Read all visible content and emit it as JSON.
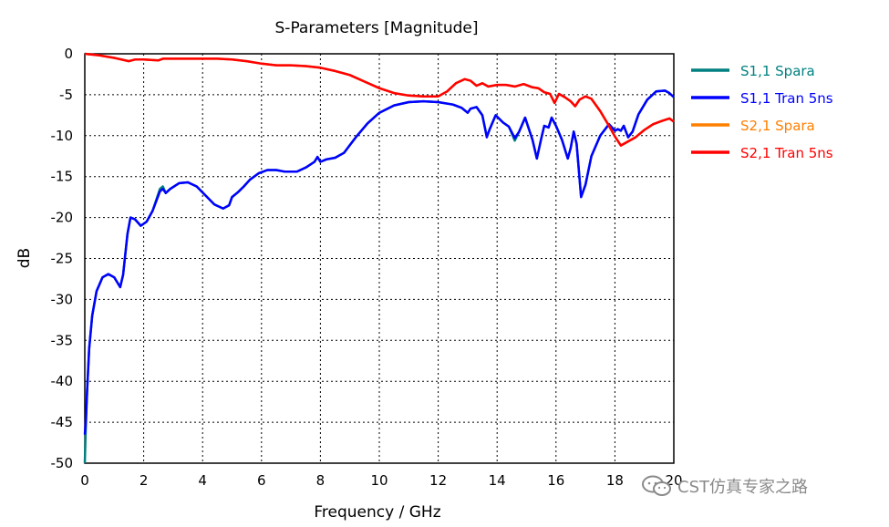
{
  "chart_data": {
    "type": "line",
    "title": "S-Parameters [Magnitude]",
    "xlabel": "Frequency / GHz",
    "ylabel": "dB",
    "xlim": [
      0,
      20
    ],
    "ylim": [
      -50,
      0
    ],
    "x_ticks": [
      "0",
      "2",
      "4",
      "6",
      "8",
      "10",
      "12",
      "14",
      "16",
      "18",
      "20"
    ],
    "y_ticks": [
      "0",
      "-5",
      "-10",
      "-15",
      "-20",
      "-25",
      "-30",
      "-35",
      "-40",
      "-45",
      "-50"
    ],
    "grid": true,
    "legend_position": "right",
    "series": [
      {
        "name": "S1,1 Spara",
        "color": "#008080",
        "points": [
          [
            0,
            -50
          ],
          [
            0.03,
            -46
          ],
          [
            0.08,
            -41
          ],
          [
            0.15,
            -36
          ],
          [
            0.25,
            -32
          ],
          [
            0.4,
            -29
          ],
          [
            0.6,
            -27.3
          ],
          [
            0.8,
            -26.9
          ],
          [
            1.0,
            -27.3
          ],
          [
            1.2,
            -28.5
          ],
          [
            1.3,
            -27
          ],
          [
            1.45,
            -22
          ],
          [
            1.55,
            -20
          ],
          [
            1.7,
            -20.2
          ],
          [
            1.9,
            -21
          ],
          [
            2.1,
            -20.5
          ],
          [
            2.3,
            -19.2
          ],
          [
            2.55,
            -16.5
          ],
          [
            2.65,
            -16.2
          ],
          [
            2.75,
            -17
          ],
          [
            2.9,
            -16.5
          ],
          [
            3.2,
            -15.8
          ],
          [
            3.5,
            -15.7
          ],
          [
            3.8,
            -16.2
          ],
          [
            4.1,
            -17.3
          ],
          [
            4.4,
            -18.4
          ],
          [
            4.7,
            -18.9
          ],
          [
            4.9,
            -18.5
          ],
          [
            5.0,
            -17.5
          ],
          [
            5.2,
            -16.9
          ],
          [
            5.4,
            -16.2
          ],
          [
            5.6,
            -15.4
          ],
          [
            5.9,
            -14.6
          ],
          [
            6.2,
            -14.2
          ],
          [
            6.5,
            -14.2
          ],
          [
            6.8,
            -14.4
          ],
          [
            7.2,
            -14.4
          ],
          [
            7.5,
            -13.9
          ],
          [
            7.8,
            -13.2
          ],
          [
            7.9,
            -12.6
          ],
          [
            8.0,
            -13.2
          ],
          [
            8.2,
            -12.9
          ],
          [
            8.5,
            -12.7
          ],
          [
            8.8,
            -12.1
          ],
          [
            9.2,
            -10.2
          ],
          [
            9.6,
            -8.5
          ],
          [
            10.0,
            -7.2
          ],
          [
            10.5,
            -6.3
          ],
          [
            11.0,
            -5.9
          ],
          [
            11.5,
            -5.8
          ],
          [
            12.0,
            -5.9
          ],
          [
            12.5,
            -6.2
          ],
          [
            12.8,
            -6.6
          ],
          [
            13.0,
            -7.2
          ],
          [
            13.1,
            -6.7
          ],
          [
            13.3,
            -6.5
          ],
          [
            13.5,
            -7.5
          ],
          [
            13.65,
            -10.1
          ],
          [
            13.75,
            -9.2
          ],
          [
            13.95,
            -7.5
          ],
          [
            14.2,
            -8.4
          ],
          [
            14.4,
            -8.9
          ],
          [
            14.6,
            -10.6
          ],
          [
            14.75,
            -9.5
          ],
          [
            14.95,
            -7.8
          ],
          [
            15.2,
            -10.5
          ],
          [
            15.35,
            -12.8
          ],
          [
            15.5,
            -10.3
          ],
          [
            15.6,
            -8.8
          ],
          [
            15.75,
            -9
          ],
          [
            15.85,
            -7.8
          ],
          [
            16.0,
            -8.8
          ],
          [
            16.2,
            -10.5
          ],
          [
            16.4,
            -12.8
          ],
          [
            16.5,
            -11.5
          ],
          [
            16.6,
            -9.5
          ],
          [
            16.7,
            -11
          ],
          [
            16.85,
            -17.5
          ],
          [
            17.0,
            -16
          ],
          [
            17.2,
            -12.5
          ],
          [
            17.5,
            -10
          ],
          [
            17.8,
            -8.6
          ],
          [
            18.0,
            -9.4
          ],
          [
            18.1,
            -9.2
          ],
          [
            18.2,
            -9.4
          ],
          [
            18.3,
            -8.8
          ],
          [
            18.45,
            -10.2
          ],
          [
            18.6,
            -9.5
          ],
          [
            18.8,
            -7.4
          ],
          [
            19.1,
            -5.6
          ],
          [
            19.4,
            -4.6
          ],
          [
            19.7,
            -4.5
          ],
          [
            19.85,
            -4.8
          ],
          [
            20.0,
            -5.3
          ]
        ]
      },
      {
        "name": "S1,1 Tran 5ns",
        "color": "#0000ff",
        "points": [
          [
            0,
            -46.5
          ],
          [
            0.03,
            -45
          ],
          [
            0.08,
            -41
          ],
          [
            0.15,
            -36
          ],
          [
            0.25,
            -32
          ],
          [
            0.4,
            -29
          ],
          [
            0.6,
            -27.3
          ],
          [
            0.8,
            -26.9
          ],
          [
            1.0,
            -27.3
          ],
          [
            1.2,
            -28.5
          ],
          [
            1.3,
            -27
          ],
          [
            1.45,
            -22
          ],
          [
            1.55,
            -20
          ],
          [
            1.7,
            -20.2
          ],
          [
            1.9,
            -21
          ],
          [
            2.1,
            -20.5
          ],
          [
            2.3,
            -19.2
          ],
          [
            2.55,
            -16.8
          ],
          [
            2.65,
            -16.5
          ],
          [
            2.75,
            -17
          ],
          [
            2.9,
            -16.5
          ],
          [
            3.2,
            -15.8
          ],
          [
            3.5,
            -15.7
          ],
          [
            3.8,
            -16.2
          ],
          [
            4.1,
            -17.3
          ],
          [
            4.4,
            -18.4
          ],
          [
            4.7,
            -18.9
          ],
          [
            4.9,
            -18.5
          ],
          [
            5.0,
            -17.5
          ],
          [
            5.2,
            -16.9
          ],
          [
            5.4,
            -16.2
          ],
          [
            5.6,
            -15.4
          ],
          [
            5.9,
            -14.6
          ],
          [
            6.2,
            -14.2
          ],
          [
            6.5,
            -14.2
          ],
          [
            6.8,
            -14.4
          ],
          [
            7.2,
            -14.4
          ],
          [
            7.5,
            -13.9
          ],
          [
            7.8,
            -13.2
          ],
          [
            7.9,
            -12.6
          ],
          [
            8.0,
            -13.2
          ],
          [
            8.2,
            -12.9
          ],
          [
            8.5,
            -12.7
          ],
          [
            8.8,
            -12.1
          ],
          [
            9.2,
            -10.2
          ],
          [
            9.6,
            -8.5
          ],
          [
            10.0,
            -7.2
          ],
          [
            10.5,
            -6.3
          ],
          [
            11.0,
            -5.9
          ],
          [
            11.5,
            -5.8
          ],
          [
            12.0,
            -5.9
          ],
          [
            12.5,
            -6.2
          ],
          [
            12.8,
            -6.6
          ],
          [
            13.0,
            -7.2
          ],
          [
            13.1,
            -6.7
          ],
          [
            13.3,
            -6.5
          ],
          [
            13.5,
            -7.5
          ],
          [
            13.65,
            -10.2
          ],
          [
            13.75,
            -9.2
          ],
          [
            13.95,
            -7.5
          ],
          [
            14.2,
            -8.4
          ],
          [
            14.4,
            -8.9
          ],
          [
            14.6,
            -10.3
          ],
          [
            14.75,
            -9.5
          ],
          [
            14.95,
            -7.8
          ],
          [
            15.2,
            -10.5
          ],
          [
            15.35,
            -12.8
          ],
          [
            15.5,
            -10.3
          ],
          [
            15.6,
            -8.8
          ],
          [
            15.75,
            -9
          ],
          [
            15.85,
            -7.8
          ],
          [
            16.0,
            -8.8
          ],
          [
            16.2,
            -10.5
          ],
          [
            16.4,
            -12.8
          ],
          [
            16.5,
            -11.5
          ],
          [
            16.6,
            -9.5
          ],
          [
            16.7,
            -11
          ],
          [
            16.85,
            -17.5
          ],
          [
            17.0,
            -16
          ],
          [
            17.2,
            -12.5
          ],
          [
            17.5,
            -10
          ],
          [
            17.8,
            -8.6
          ],
          [
            18.0,
            -9.4
          ],
          [
            18.1,
            -9.2
          ],
          [
            18.2,
            -9.4
          ],
          [
            18.3,
            -8.8
          ],
          [
            18.45,
            -10.2
          ],
          [
            18.6,
            -9.5
          ],
          [
            18.8,
            -7.4
          ],
          [
            19.1,
            -5.6
          ],
          [
            19.4,
            -4.6
          ],
          [
            19.7,
            -4.5
          ],
          [
            19.85,
            -4.8
          ],
          [
            20.0,
            -5.3
          ]
        ]
      },
      {
        "name": "S2,1 Spara",
        "color": "#ff8000",
        "points": [
          [
            0,
            0
          ],
          [
            0.5,
            -0.2
          ],
          [
            1.0,
            -0.5
          ],
          [
            1.5,
            -0.9
          ],
          [
            1.7,
            -0.7
          ],
          [
            2.0,
            -0.7
          ],
          [
            2.5,
            -0.8
          ],
          [
            2.65,
            -0.6
          ],
          [
            3.0,
            -0.6
          ],
          [
            3.5,
            -0.6
          ],
          [
            4.0,
            -0.6
          ],
          [
            4.5,
            -0.6
          ],
          [
            5.0,
            -0.7
          ],
          [
            5.5,
            -0.9
          ],
          [
            6.0,
            -1.2
          ],
          [
            6.5,
            -1.4
          ],
          [
            7.0,
            -1.4
          ],
          [
            7.5,
            -1.5
          ],
          [
            8.0,
            -1.7
          ],
          [
            8.5,
            -2.1
          ],
          [
            9.0,
            -2.6
          ],
          [
            9.5,
            -3.4
          ],
          [
            10.0,
            -4.2
          ],
          [
            10.5,
            -4.8
          ],
          [
            11.0,
            -5.1
          ],
          [
            11.5,
            -5.2
          ],
          [
            12.0,
            -5.2
          ],
          [
            12.3,
            -4.6
          ],
          [
            12.6,
            -3.6
          ],
          [
            12.9,
            -3.1
          ],
          [
            13.1,
            -3.3
          ],
          [
            13.3,
            -3.9
          ],
          [
            13.5,
            -3.6
          ],
          [
            13.7,
            -4.0
          ],
          [
            14.0,
            -3.8
          ],
          [
            14.3,
            -3.8
          ],
          [
            14.6,
            -4.0
          ],
          [
            14.9,
            -3.7
          ],
          [
            15.2,
            -4.1
          ],
          [
            15.4,
            -4.2
          ],
          [
            15.6,
            -4.7
          ],
          [
            15.8,
            -4.9
          ],
          [
            15.95,
            -6.0
          ],
          [
            16.1,
            -4.9
          ],
          [
            16.3,
            -5.3
          ],
          [
            16.5,
            -5.8
          ],
          [
            16.65,
            -6.4
          ],
          [
            16.8,
            -5.6
          ],
          [
            17.0,
            -5.2
          ],
          [
            17.2,
            -5.5
          ],
          [
            17.5,
            -7.0
          ],
          [
            17.8,
            -8.8
          ],
          [
            18.0,
            -10.1
          ],
          [
            18.2,
            -11.2
          ],
          [
            18.4,
            -10.8
          ],
          [
            18.7,
            -10.2
          ],
          [
            19.0,
            -9.3
          ],
          [
            19.3,
            -8.6
          ],
          [
            19.6,
            -8.2
          ],
          [
            19.85,
            -7.9
          ],
          [
            20.0,
            -8.3
          ]
        ]
      },
      {
        "name": "S2,1 Tran 5ns",
        "color": "#ff0000",
        "points": [
          [
            0,
            0
          ],
          [
            0.5,
            -0.2
          ],
          [
            1.0,
            -0.5
          ],
          [
            1.5,
            -0.9
          ],
          [
            1.7,
            -0.7
          ],
          [
            2.0,
            -0.7
          ],
          [
            2.5,
            -0.8
          ],
          [
            2.65,
            -0.6
          ],
          [
            3.0,
            -0.6
          ],
          [
            3.5,
            -0.6
          ],
          [
            4.0,
            -0.6
          ],
          [
            4.5,
            -0.6
          ],
          [
            5.0,
            -0.7
          ],
          [
            5.5,
            -0.9
          ],
          [
            6.0,
            -1.2
          ],
          [
            6.5,
            -1.4
          ],
          [
            7.0,
            -1.4
          ],
          [
            7.5,
            -1.5
          ],
          [
            8.0,
            -1.7
          ],
          [
            8.5,
            -2.1
          ],
          [
            9.0,
            -2.6
          ],
          [
            9.5,
            -3.4
          ],
          [
            10.0,
            -4.2
          ],
          [
            10.5,
            -4.8
          ],
          [
            11.0,
            -5.1
          ],
          [
            11.5,
            -5.2
          ],
          [
            12.0,
            -5.2
          ],
          [
            12.3,
            -4.6
          ],
          [
            12.6,
            -3.6
          ],
          [
            12.9,
            -3.1
          ],
          [
            13.1,
            -3.3
          ],
          [
            13.3,
            -3.9
          ],
          [
            13.5,
            -3.6
          ],
          [
            13.7,
            -4.0
          ],
          [
            14.0,
            -3.8
          ],
          [
            14.3,
            -3.8
          ],
          [
            14.6,
            -4.0
          ],
          [
            14.9,
            -3.7
          ],
          [
            15.2,
            -4.1
          ],
          [
            15.4,
            -4.2
          ],
          [
            15.6,
            -4.7
          ],
          [
            15.8,
            -4.9
          ],
          [
            15.95,
            -6.0
          ],
          [
            16.1,
            -4.9
          ],
          [
            16.3,
            -5.3
          ],
          [
            16.5,
            -5.8
          ],
          [
            16.65,
            -6.4
          ],
          [
            16.8,
            -5.6
          ],
          [
            17.0,
            -5.2
          ],
          [
            17.2,
            -5.5
          ],
          [
            17.5,
            -7.0
          ],
          [
            17.8,
            -8.8
          ],
          [
            18.0,
            -10.1
          ],
          [
            18.2,
            -11.2
          ],
          [
            18.4,
            -10.8
          ],
          [
            18.7,
            -10.2
          ],
          [
            19.0,
            -9.3
          ],
          [
            19.3,
            -8.6
          ],
          [
            19.6,
            -8.2
          ],
          [
            19.85,
            -7.9
          ],
          [
            20.0,
            -8.3
          ]
        ]
      }
    ]
  },
  "watermark": {
    "icon": "wechat-icon",
    "text": "CST仿真专家之路"
  }
}
